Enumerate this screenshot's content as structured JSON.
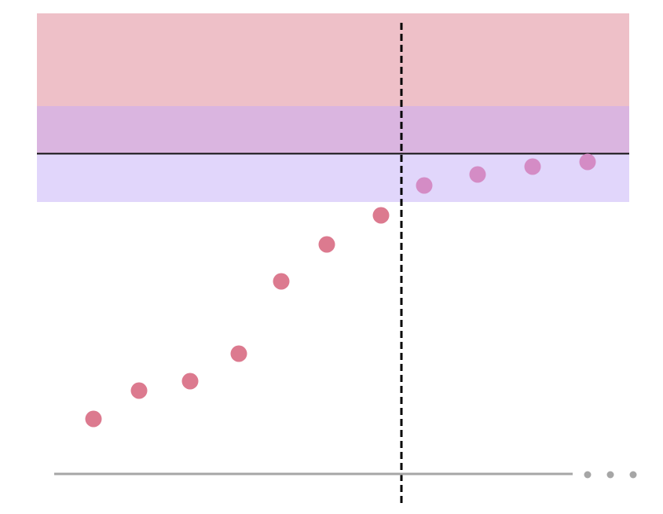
{
  "bands": [
    {
      "id": "upper-band",
      "color": "#eec0c8"
    },
    {
      "id": "overlap-band",
      "color": "#dab5e0"
    },
    {
      "id": "lower-band",
      "color": "#e1d6fb"
    }
  ],
  "colors": {
    "point_in_band": "#d48cc5",
    "point_outside": "#dc7a8f",
    "reference_line": "#111111",
    "divider": "#000000",
    "axis": "#a6a6a6",
    "ellipsis": "#a6a6a6"
  },
  "points": [
    {
      "in_band": false
    },
    {
      "in_band": false
    },
    {
      "in_band": false
    },
    {
      "in_band": false
    },
    {
      "in_band": false
    },
    {
      "in_band": false
    },
    {
      "in_band": false
    },
    {
      "in_band": true
    },
    {
      "in_band": true
    },
    {
      "in_band": true
    },
    {
      "in_band": true
    }
  ],
  "icons": {
    "axis_continuation": "ellipsis-icon"
  }
}
